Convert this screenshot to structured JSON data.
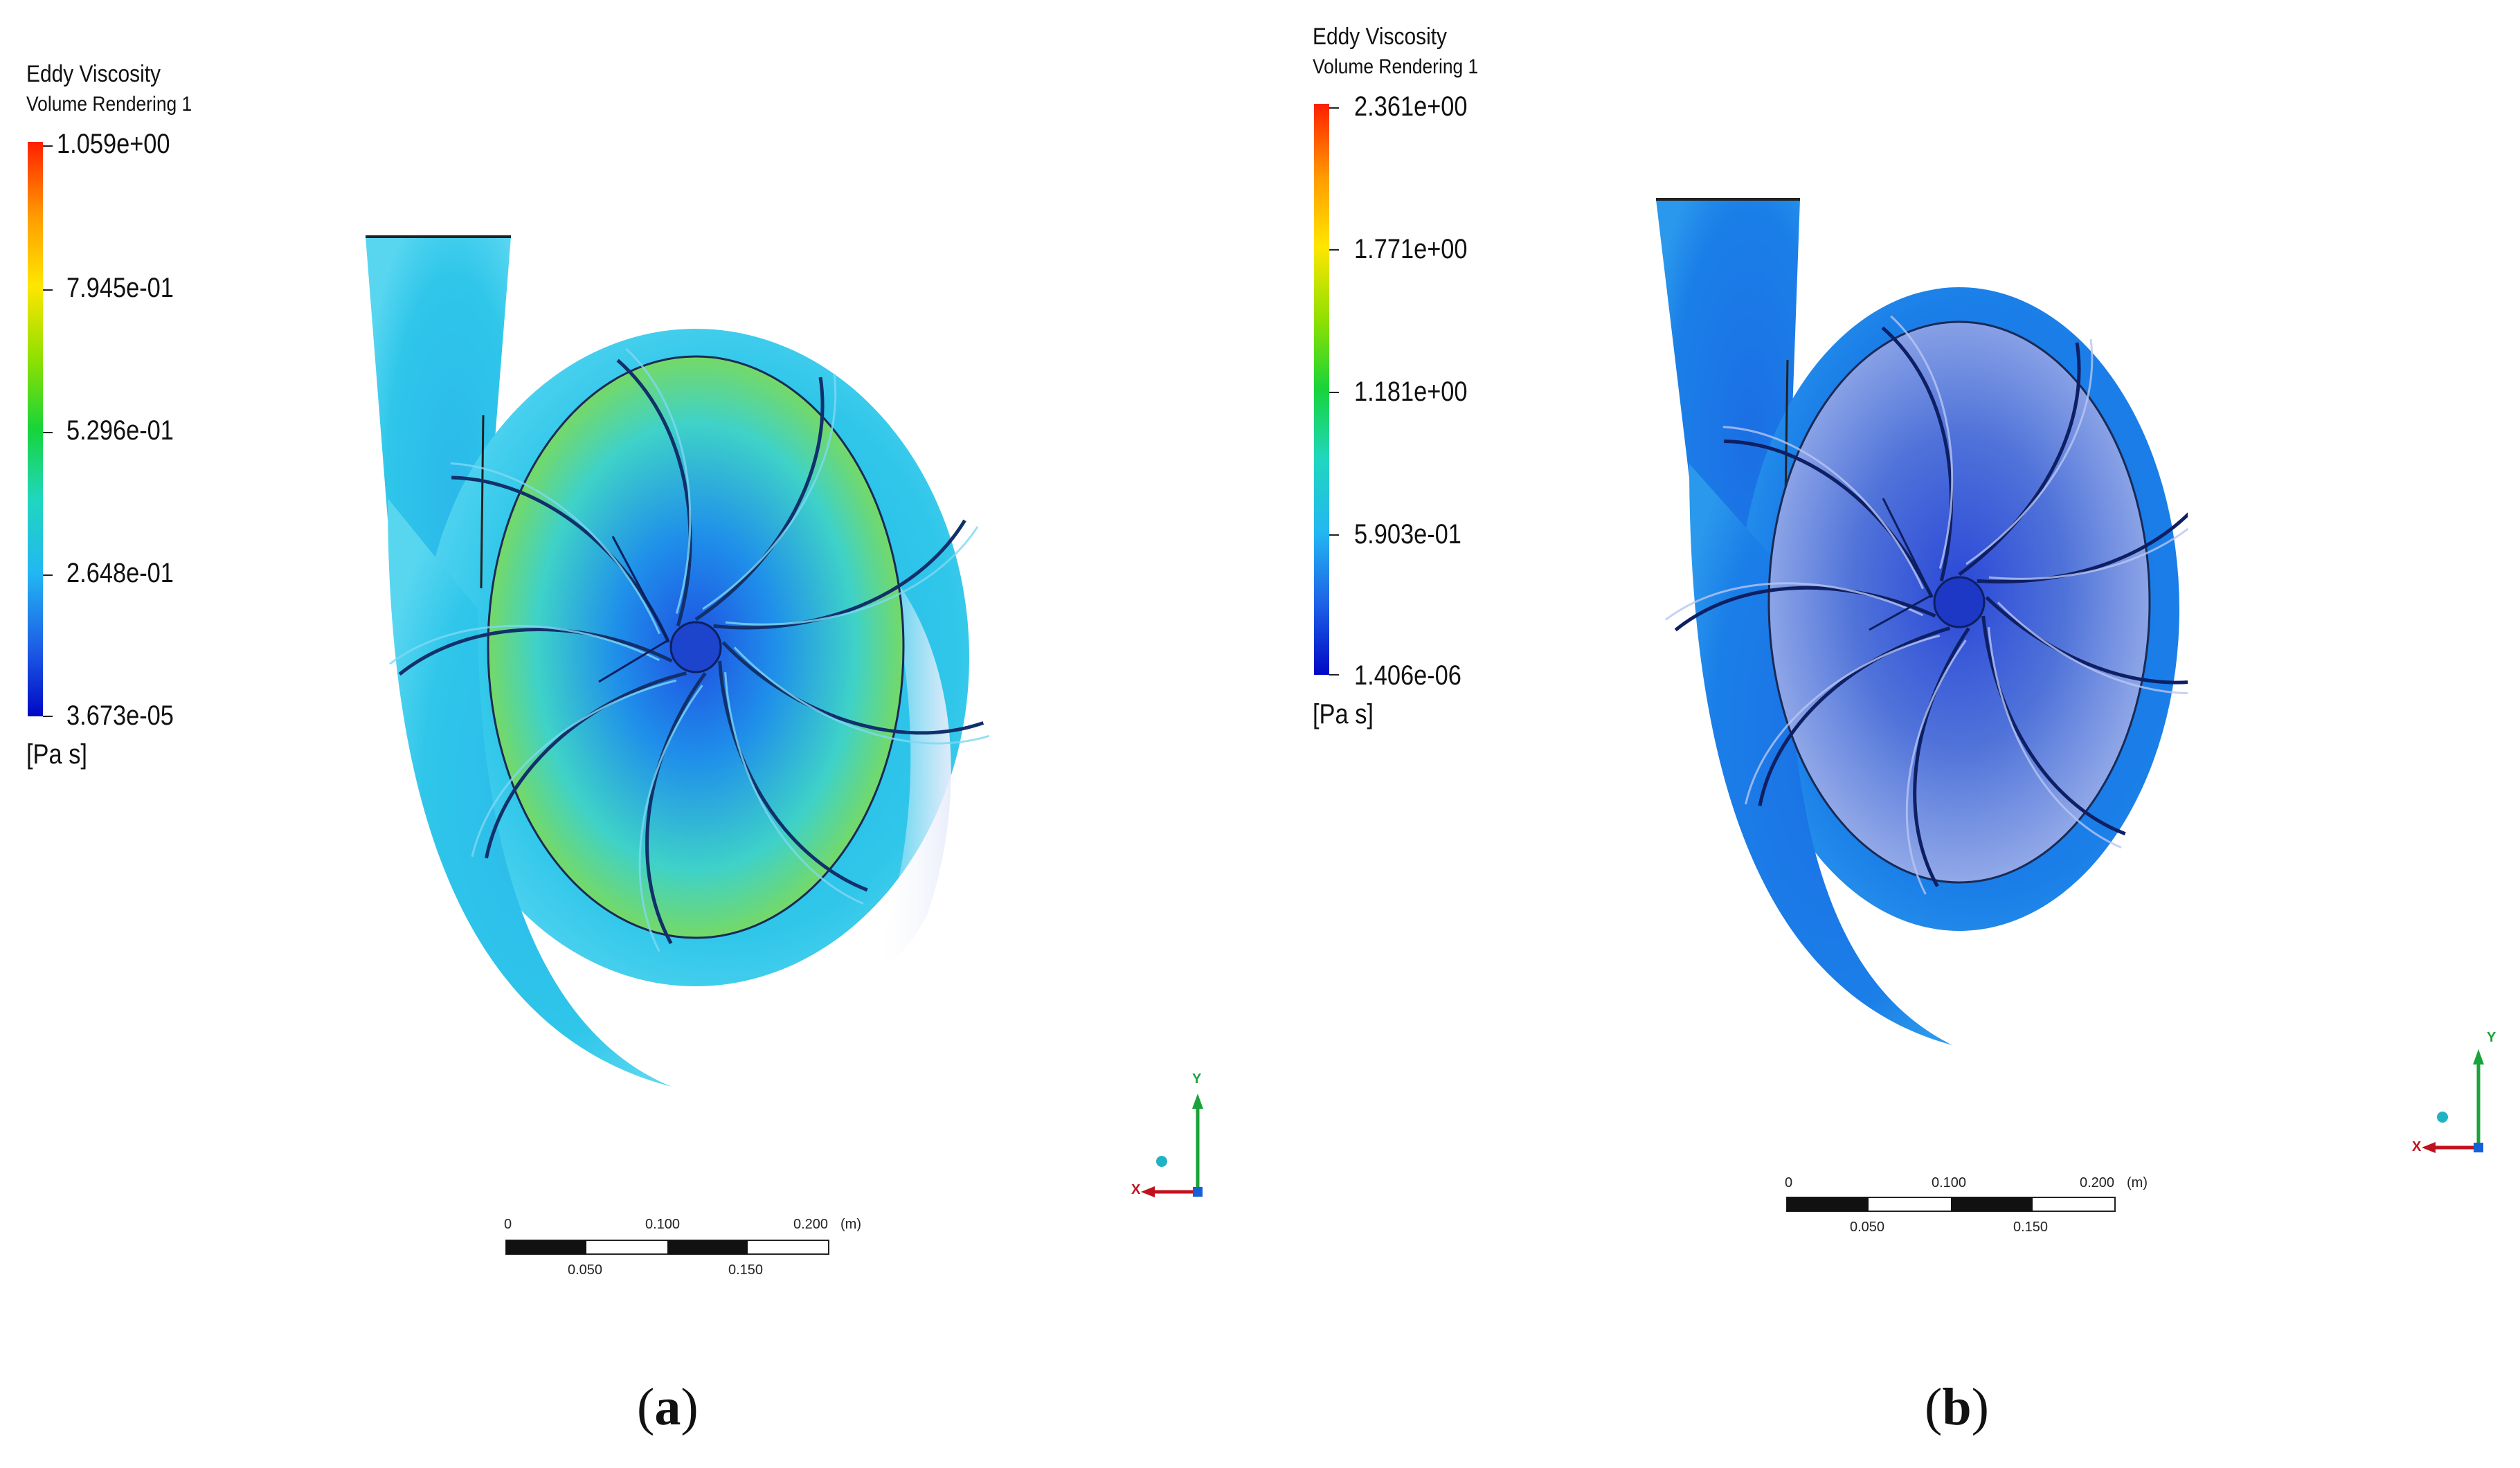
{
  "panel_a": {
    "legend": {
      "title": "Eddy Viscosity",
      "subtitle": "Volume Rendering 1",
      "ticks": [
        "1.059e+00",
        "7.945e-01",
        "5.296e-01",
        "2.648e-01",
        "3.673e-05"
      ],
      "unit": "[Pa s]"
    },
    "scale_bar": {
      "top_labels": [
        "0",
        "0.100",
        "0.200",
        "(m)"
      ],
      "bottom_labels": [
        "0.050",
        "0.150"
      ]
    },
    "triad": {
      "y": "Y",
      "x": "X"
    },
    "caption_open": "(",
    "caption_letter": "a",
    "caption_close": ")"
  },
  "panel_b": {
    "legend": {
      "title": "Eddy Viscosity",
      "subtitle": "Volume Rendering 1",
      "ticks": [
        "2.361e+00",
        "1.771e+00",
        "1.181e+00",
        "5.903e-01",
        "1.406e-06"
      ],
      "unit": "[Pa s]"
    },
    "scale_bar": {
      "top_labels": [
        "0",
        "0.100",
        "0.200",
        "(m)"
      ],
      "bottom_labels": [
        "0.050",
        "0.150"
      ]
    },
    "triad": {
      "y": "Y",
      "x": "X"
    },
    "caption_open": "(",
    "caption_letter": "b",
    "caption_close": ")"
  },
  "colors": {
    "colormap_max": "#ff1f00",
    "colormap_min": "#0008c6",
    "volute_a": "#2fc6ea",
    "volute_b": "#1b7fe8",
    "axis_y": "#1aa33a",
    "axis_x": "#c0121c",
    "axis_z": "#1560d8"
  }
}
